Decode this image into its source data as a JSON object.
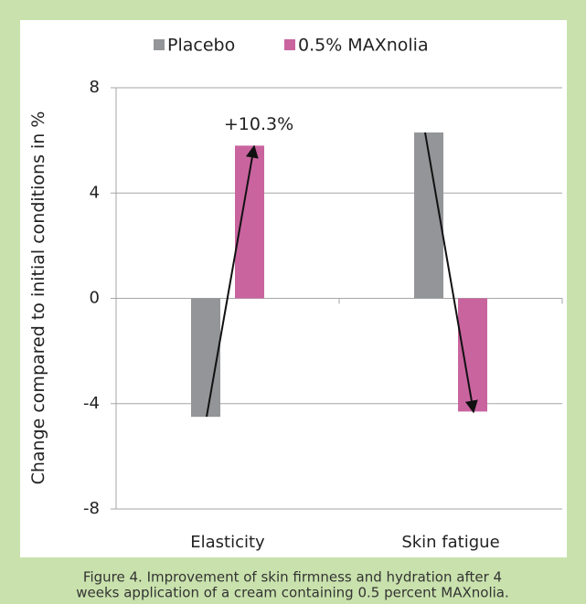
{
  "chart_data": {
    "type": "bar",
    "categories": [
      "Elasticity",
      "Skin fatigue"
    ],
    "series": [
      {
        "name": "Placebo",
        "color": "#939598",
        "values": [
          -4.5,
          6.3
        ]
      },
      {
        "name": "0.5% MAXnolia",
        "color": "#c9649f",
        "values": [
          5.8,
          -4.3
        ]
      }
    ],
    "ylabel": "Change compared to initial conditions in %",
    "ylim": [
      -8,
      8
    ],
    "yticks": [
      -8,
      -4,
      0,
      4,
      8
    ],
    "grid": true,
    "legend": "top",
    "annotation": "+10.3%",
    "caption": [
      "Figure 4. Improvement of skin firmness and hydration after 4",
      "weeks application of a cream containing 0.5 percent MAXnolia."
    ]
  }
}
